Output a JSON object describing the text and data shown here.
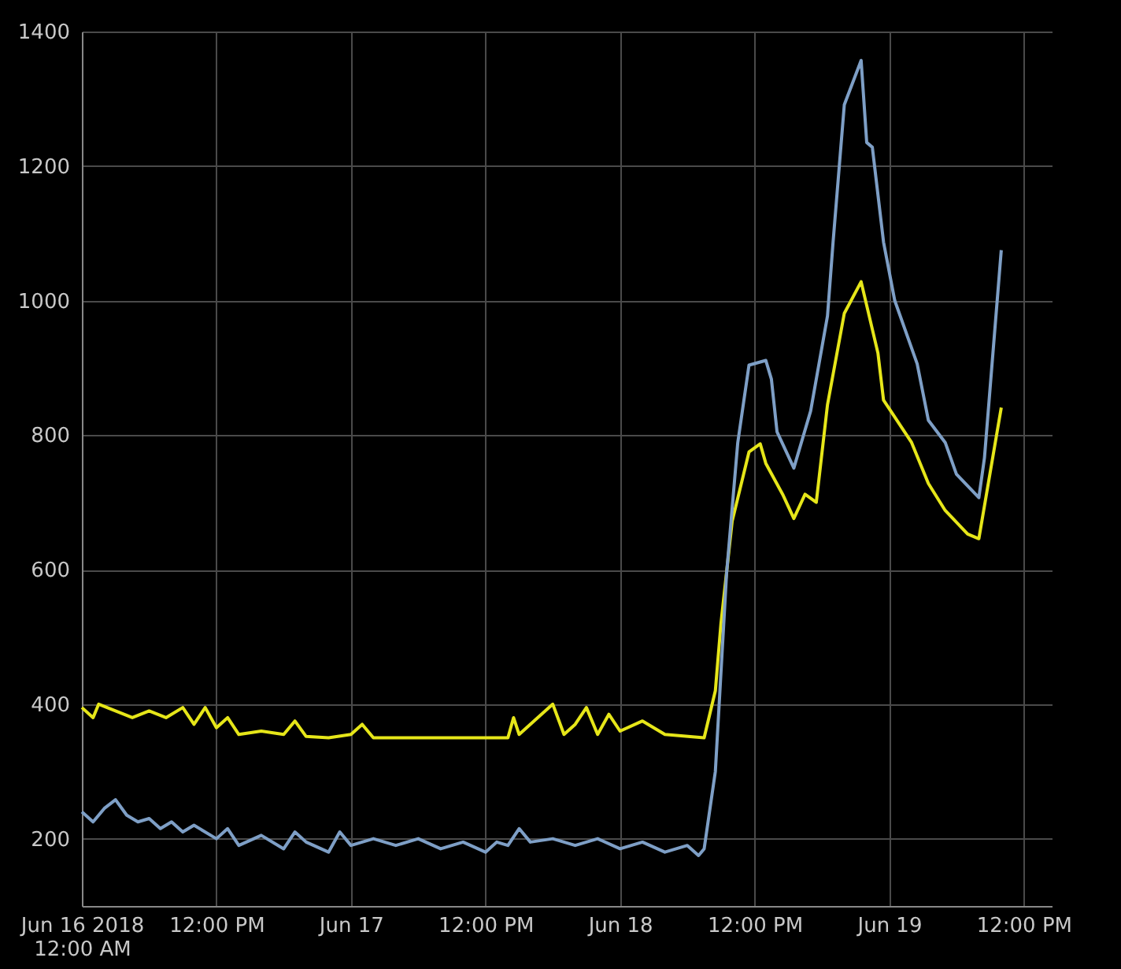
{
  "chart_data": {
    "type": "line",
    "xlim": [
      "2018-06-16T00:00",
      "2018-06-19T14:30"
    ],
    "xticks": [
      {
        "value": "2018-06-16T00:00",
        "label": "Jun 16 2018\n12:00 AM"
      },
      {
        "value": "2018-06-16T12:00",
        "label": "12:00 PM"
      },
      {
        "value": "2018-06-17T00:00",
        "label": "Jun 17"
      },
      {
        "value": "2018-06-17T12:00",
        "label": "12:00 PM"
      },
      {
        "value": "2018-06-18T00:00",
        "label": "Jun 18"
      },
      {
        "value": "2018-06-18T12:00",
        "label": "12:00 PM"
      },
      {
        "value": "2018-06-19T00:00",
        "label": "Jun 19"
      },
      {
        "value": "2018-06-19T12:00",
        "label": "12:00 PM"
      }
    ],
    "ylim": [
      100,
      1400
    ],
    "yticks": [
      200,
      400,
      600,
      800,
      1000,
      1200,
      1400
    ],
    "grid": true,
    "series": [
      {
        "color": "#e6e619",
        "x": [
          "2018-06-16T00:00",
          "2018-06-16T01:00",
          "2018-06-16T01:30",
          "2018-06-16T03:00",
          "2018-06-16T04:30",
          "2018-06-16T06:00",
          "2018-06-16T07:30",
          "2018-06-16T09:00",
          "2018-06-16T10:00",
          "2018-06-16T11:00",
          "2018-06-16T12:00",
          "2018-06-16T13:00",
          "2018-06-16T14:00",
          "2018-06-16T16:00",
          "2018-06-16T18:00",
          "2018-06-16T19:00",
          "2018-06-16T20:00",
          "2018-06-16T22:00",
          "2018-06-17T00:00",
          "2018-06-17T01:00",
          "2018-06-17T02:00",
          "2018-06-17T14:00",
          "2018-06-17T14:30",
          "2018-06-17T15:00",
          "2018-06-17T18:00",
          "2018-06-17T19:00",
          "2018-06-17T20:00",
          "2018-06-17T21:00",
          "2018-06-17T22:00",
          "2018-06-17T23:00",
          "2018-06-18T00:00",
          "2018-06-18T02:00",
          "2018-06-18T04:00",
          "2018-06-18T07:30",
          "2018-06-18T08:30",
          "2018-06-18T09:00",
          "2018-06-18T10:00",
          "2018-06-18T11:30",
          "2018-06-18T12:30",
          "2018-06-18T13:00",
          "2018-06-18T14:30",
          "2018-06-18T15:30",
          "2018-06-18T16:30",
          "2018-06-18T17:30",
          "2018-06-18T18:30",
          "2018-06-18T20:00",
          "2018-06-18T21:30",
          "2018-06-18T23:00",
          "2018-06-18T23:30",
          "2018-06-19T02:00",
          "2018-06-19T03:30",
          "2018-06-19T05:00",
          "2018-06-19T07:00",
          "2018-06-19T08:00",
          "2018-06-19T10:00"
        ],
        "values": [
          395,
          380,
          400,
          390,
          380,
          390,
          380,
          395,
          370,
          395,
          365,
          380,
          355,
          360,
          355,
          375,
          352,
          350,
          355,
          370,
          350,
          350,
          380,
          355,
          400,
          355,
          370,
          395,
          355,
          385,
          360,
          375,
          355,
          350,
          420,
          520,
          672,
          775,
          787,
          758,
          712,
          676,
          712,
          700,
          845,
          981,
          1028,
          922,
          852,
          789,
          728,
          688,
          653,
          646,
          841
        ]
      },
      {
        "color": "#7e9fc6",
        "x": [
          "2018-06-16T00:00",
          "2018-06-16T01:00",
          "2018-06-16T02:00",
          "2018-06-16T03:00",
          "2018-06-16T04:00",
          "2018-06-16T05:00",
          "2018-06-16T06:00",
          "2018-06-16T07:00",
          "2018-06-16T08:00",
          "2018-06-16T09:00",
          "2018-06-16T10:00",
          "2018-06-16T12:00",
          "2018-06-16T13:00",
          "2018-06-16T14:00",
          "2018-06-16T16:00",
          "2018-06-16T18:00",
          "2018-06-16T19:00",
          "2018-06-16T20:00",
          "2018-06-16T22:00",
          "2018-06-16T23:00",
          "2018-06-17T00:00",
          "2018-06-17T02:00",
          "2018-06-17T04:00",
          "2018-06-17T06:00",
          "2018-06-17T08:00",
          "2018-06-17T10:00",
          "2018-06-17T12:00",
          "2018-06-17T13:00",
          "2018-06-17T14:00",
          "2018-06-17T15:00",
          "2018-06-17T16:00",
          "2018-06-17T18:00",
          "2018-06-17T20:00",
          "2018-06-17T22:00",
          "2018-06-18T00:00",
          "2018-06-18T02:00",
          "2018-06-18T04:00",
          "2018-06-18T06:00",
          "2018-06-18T07:00",
          "2018-06-18T07:30",
          "2018-06-18T08:30",
          "2018-06-18T09:30",
          "2018-06-18T10:30",
          "2018-06-18T11:30",
          "2018-06-18T13:00",
          "2018-06-18T13:30",
          "2018-06-18T14:00",
          "2018-06-18T15:30",
          "2018-06-18T17:00",
          "2018-06-18T18:30",
          "2018-06-18T19:00",
          "2018-06-18T20:00",
          "2018-06-18T21:30",
          "2018-06-18T22:00",
          "2018-06-18T22:30",
          "2018-06-18T23:30",
          "2018-06-19T00:30",
          "2018-06-19T02:30",
          "2018-06-19T03:30",
          "2018-06-19T05:00",
          "2018-06-19T06:00",
          "2018-06-19T08:00",
          "2018-06-19T08:30",
          "2018-06-19T10:00"
        ],
        "values": [
          240,
          225,
          245,
          258,
          235,
          225,
          230,
          215,
          225,
          210,
          220,
          200,
          215,
          190,
          205,
          185,
          210,
          195,
          180,
          210,
          190,
          200,
          190,
          200,
          185,
          195,
          180,
          195,
          190,
          215,
          195,
          200,
          190,
          200,
          185,
          195,
          180,
          190,
          175,
          185,
          300,
          594,
          789,
          904,
          911,
          883,
          805,
          751,
          836,
          977,
          1087,
          1291,
          1357,
          1235,
          1228,
          1087,
          1000,
          906,
          822,
          789,
          742,
          707,
          766,
          1075
        ]
      }
    ]
  }
}
